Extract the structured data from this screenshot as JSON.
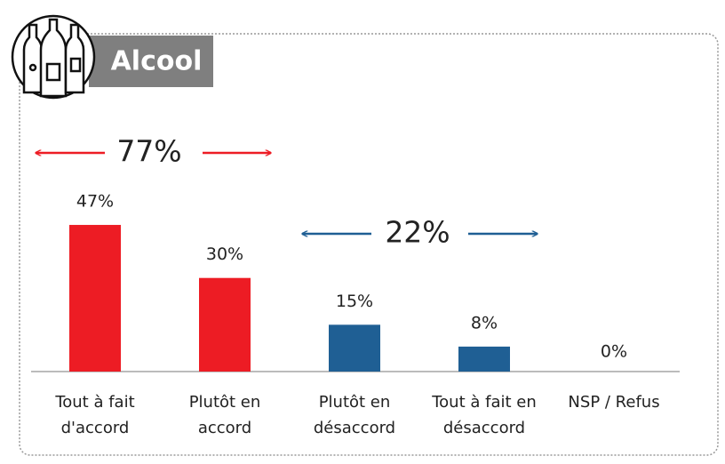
{
  "chart_data": {
    "type": "bar",
    "title": "Alcool",
    "categories": [
      [
        "Tout à fait",
        "d'accord"
      ],
      [
        "Plutôt en",
        "accord"
      ],
      [
        "Plutôt en",
        "désaccord"
      ],
      [
        "Tout à fait en",
        "désaccord"
      ],
      [
        "NSP / Refus"
      ]
    ],
    "values": [
      47,
      30,
      15,
      8,
      0
    ],
    "value_labels": [
      "47%",
      "30%",
      "15%",
      "8%",
      "0%"
    ],
    "colors": [
      "#ed1c24",
      "#ed1c24",
      "#1f5f94",
      "#1f5f94",
      "#1f5f94"
    ],
    "ylim": [
      0,
      50
    ],
    "annotations": [
      {
        "text": "77%",
        "color": "#ed1c24"
      },
      {
        "text": "22%",
        "color": "#1f5f94"
      }
    ]
  }
}
